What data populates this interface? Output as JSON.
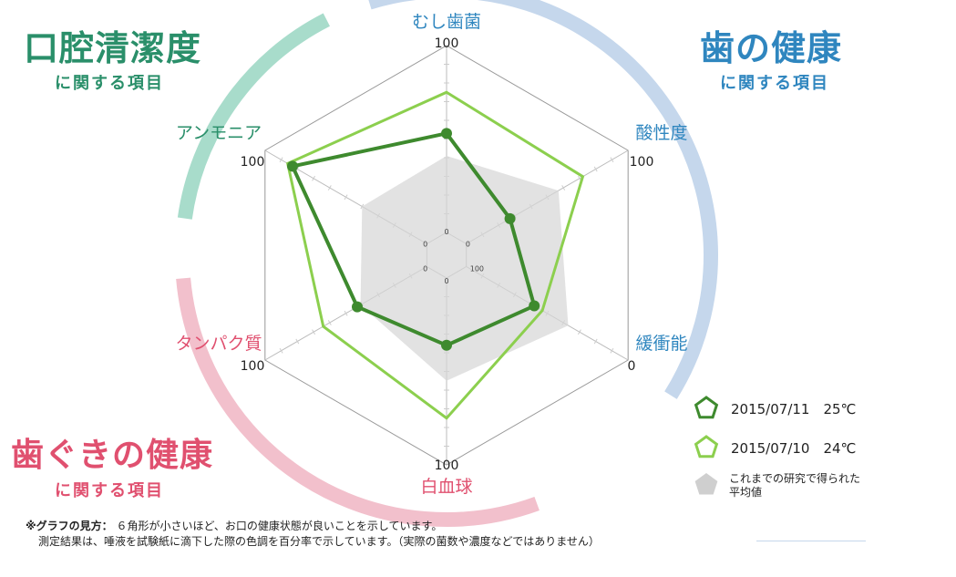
{
  "categories": {
    "mouth": {
      "title": "口腔清潔度",
      "sub": "に関する項目",
      "color": "#2a8f6a",
      "arc_color": "#a8dccb"
    },
    "teeth": {
      "title": "歯の健康",
      "sub": "に関する項目",
      "color": "#2f86bf",
      "arc_color": "#c5d7ec"
    },
    "gums": {
      "title": "歯ぐきの健康",
      "sub": "に関する項目",
      "color": "#e0506f",
      "arc_color": "#f2c0cc"
    }
  },
  "chart_data": {
    "type": "radar",
    "axes": [
      {
        "label": "むし歯菌",
        "outer_tick": "100",
        "color": "#2f86bf"
      },
      {
        "label": "酸性度",
        "outer_tick": "100",
        "color": "#2f86bf"
      },
      {
        "label": "緩衝能",
        "outer_tick": "0",
        "color": "#2f86bf"
      },
      {
        "label": "白血球",
        "outer_tick": "100",
        "color": "#e0506f"
      },
      {
        "label": "タンパク質",
        "outer_tick": "100",
        "color": "#e0506f"
      },
      {
        "label": "アンモニア",
        "outer_tick": "100",
        "color": "#2a8f6a"
      }
    ],
    "inner_ticks": [
      "0",
      "0",
      "100",
      "0",
      "0",
      "0"
    ],
    "range": [
      0,
      100
    ],
    "grid": true,
    "series": [
      {
        "name": "2015/07/11　25℃",
        "color": "#3e8a2e",
        "values": [
          53,
          27,
          42,
          36,
          43,
          83
        ]
      },
      {
        "name": "2015/07/10　24℃",
        "color": "#8ccf4e",
        "values": [
          75,
          72,
          47,
          75,
          64,
          86
        ]
      },
      {
        "name": "これまでの研究で得られた平均値",
        "color": "#cfcfcf",
        "values": [
          41,
          57,
          63,
          55,
          41,
          40
        ]
      }
    ],
    "legend_position": "bottom-right"
  },
  "note": {
    "label": "※グラフの見方：",
    "line1": "６角形が小さいほど、お口の健康状態が良いことを示しています。",
    "line2": "測定結果は、唾液を試験紙に滴下した際の色調を百分率で示しています。（実際の菌数や濃度などではありません）"
  }
}
